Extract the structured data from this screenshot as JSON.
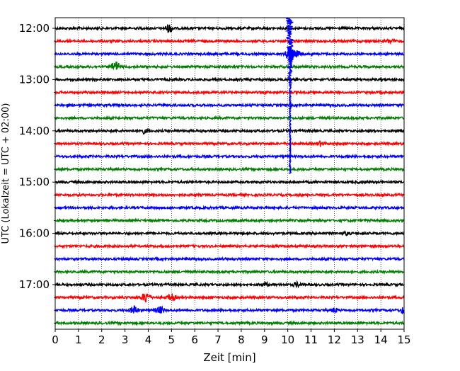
{
  "chart_data": {
    "type": "line",
    "xlabel": "Zeit  [min]",
    "ylabel": "UTC (Lokalzeit = UTC + 02:00)",
    "xlim": [
      0,
      15
    ],
    "x_ticks": [
      0,
      1,
      2,
      3,
      4,
      5,
      6,
      7,
      8,
      9,
      10,
      11,
      12,
      13,
      14,
      15
    ],
    "y_tick_labels": [
      "12:00",
      "13:00",
      "14:00",
      "15:00",
      "16:00",
      "17:00"
    ],
    "grid": "vertical dotted",
    "trace_colors": [
      "#000000",
      "#ff0000",
      "#0000ff",
      "#008000"
    ],
    "traces": [
      {
        "start": "12:00",
        "color": "#000000",
        "events": [
          {
            "t": 4.9,
            "amp": 6
          }
        ]
      },
      {
        "start": "12:15",
        "color": "#ff0000",
        "events": [
          {
            "t": 14.4,
            "amp": 3
          }
        ]
      },
      {
        "start": "12:30",
        "color": "#0000ff",
        "events": [
          {
            "t": 10.1,
            "amp": 14
          }
        ]
      },
      {
        "start": "12:45",
        "color": "#008000",
        "events": [
          {
            "t": 2.6,
            "amp": 8
          }
        ]
      },
      {
        "start": "13:00",
        "color": "#000000",
        "events": []
      },
      {
        "start": "13:15",
        "color": "#ff0000",
        "events": []
      },
      {
        "start": "13:30",
        "color": "#0000ff",
        "events": []
      },
      {
        "start": "13:45",
        "color": "#008000",
        "events": []
      },
      {
        "start": "14:00",
        "color": "#000000",
        "events": [
          {
            "t": 3.8,
            "amp": 3
          }
        ]
      },
      {
        "start": "14:15",
        "color": "#ff0000",
        "events": [
          {
            "t": 11.4,
            "amp": 3
          }
        ]
      },
      {
        "start": "14:30",
        "color": "#0000ff",
        "events": []
      },
      {
        "start": "14:45",
        "color": "#008000",
        "events": []
      },
      {
        "start": "15:00",
        "color": "#000000",
        "events": []
      },
      {
        "start": "15:15",
        "color": "#ff0000",
        "events": []
      },
      {
        "start": "15:30",
        "color": "#0000ff",
        "events": []
      },
      {
        "start": "15:45",
        "color": "#008000",
        "events": []
      },
      {
        "start": "16:00",
        "color": "#000000",
        "events": [
          {
            "t": 12.5,
            "amp": 2
          }
        ]
      },
      {
        "start": "16:15",
        "color": "#ff0000",
        "events": []
      },
      {
        "start": "16:30",
        "color": "#0000ff",
        "events": []
      },
      {
        "start": "16:45",
        "color": "#008000",
        "events": []
      },
      {
        "start": "17:00",
        "color": "#000000",
        "events": [
          {
            "t": 9.0,
            "amp": 3
          },
          {
            "t": 10.4,
            "amp": 3
          }
        ]
      },
      {
        "start": "17:15",
        "color": "#ff0000",
        "events": [
          {
            "t": 3.9,
            "amp": 8
          },
          {
            "t": 5.0,
            "amp": 5
          }
        ]
      },
      {
        "start": "17:30",
        "color": "#0000ff",
        "events": [
          {
            "t": 3.4,
            "amp": 6
          },
          {
            "t": 4.5,
            "amp": 5
          },
          {
            "t": 12.0,
            "amp": 3
          },
          {
            "t": 15.0,
            "amp": 5
          }
        ]
      },
      {
        "start": "17:45",
        "color": "#008000",
        "events": []
      }
    ],
    "big_event": {
      "t": 10.1,
      "start_trace": "12:00",
      "end_trace": "14:45",
      "color": "#0000ff"
    }
  }
}
